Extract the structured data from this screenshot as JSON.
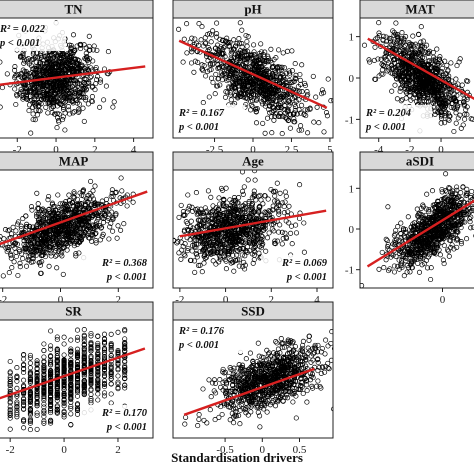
{
  "figure": {
    "xlabel": "Standardisation drivers"
  },
  "chart_data": [
    {
      "type": "scatter",
      "title": "TN",
      "xlim": [
        -3.2,
        5.0
      ],
      "ylim": [
        -1.45,
        1.45
      ],
      "xticks": [
        -2,
        0,
        2,
        4
      ],
      "yticks": [],
      "fit": {
        "x": [
          -3.2,
          4.6
        ],
        "y": [
          -0.18,
          0.28
        ]
      },
      "stats": {
        "r2": "R² = 0.022",
        "p": "p < 0.001",
        "position": "top-left"
      },
      "cloud": {
        "mean_x": 0,
        "sd_x": 1.0,
        "slope": 0.06,
        "sd_y": 0.42,
        "n": 900
      }
    },
    {
      "type": "scatter",
      "title": "pH",
      "xlim": [
        -5.2,
        5.2
      ],
      "ylim": [
        -1.45,
        1.45
      ],
      "xticks": [
        -2.5,
        0,
        2.5,
        5.0
      ],
      "yticks": [],
      "fit": {
        "x": [
          -4.8,
          4.8
        ],
        "y": [
          0.9,
          -0.72
        ]
      },
      "stats": {
        "r2": "R² = 0.167",
        "p": "p < 0.001",
        "position": "bottom-left"
      },
      "cloud": {
        "mean_x": 0,
        "sd_x": 1.8,
        "slope": -0.17,
        "sd_y": 0.38,
        "n": 900
      }
    },
    {
      "type": "scatter",
      "title": "MAT",
      "xlim": [
        -5.2,
        2.5
      ],
      "ylim": [
        -1.45,
        1.45
      ],
      "xticks": [
        -4,
        -2,
        0
      ],
      "yticks": [
        1,
        0,
        -1
      ],
      "fit": {
        "x": [
          -4.7,
          2.5
        ],
        "y": [
          0.95,
          -0.58
        ]
      },
      "stats": {
        "r2": "R² = 0.204",
        "p": "p < 0.001",
        "position": "bottom-left"
      },
      "cloud": {
        "mean_x": -1.2,
        "sd_x": 1.3,
        "slope": -0.21,
        "sd_y": 0.38,
        "n": 900
      }
    },
    {
      "type": "scatter",
      "title": "MAP",
      "xlim": [
        -2.3,
        3.2
      ],
      "ylim": [
        -1.45,
        1.45
      ],
      "xticks": [
        -2,
        0,
        2
      ],
      "yticks": [],
      "fit": {
        "x": [
          -2.3,
          3.0
        ],
        "y": [
          -0.42,
          0.92
        ]
      },
      "stats": {
        "r2": "R² = 0.368",
        "p": "p < 0.001",
        "position": "bottom-right"
      },
      "cloud": {
        "mean_x": 0,
        "sd_x": 0.9,
        "slope": 0.25,
        "sd_y": 0.34,
        "n": 900
      }
    },
    {
      "type": "scatter",
      "title": "Age",
      "xlim": [
        -2.3,
        4.7
      ],
      "ylim": [
        -1.45,
        1.45
      ],
      "xticks": [
        -2,
        0,
        2,
        4
      ],
      "yticks": [],
      "fit": {
        "x": [
          -2.0,
          4.4
        ],
        "y": [
          -0.18,
          0.45
        ]
      },
      "stats": {
        "r2": "R² = 0.069",
        "p": "p < 0.001",
        "position": "bottom-right"
      },
      "cloud": {
        "mean_x": 0.2,
        "sd_x": 1.1,
        "slope": 0.1,
        "sd_y": 0.42,
        "n": 900
      }
    },
    {
      "type": "scatter",
      "title": "aSDI",
      "xlim": [
        -3.3,
        1.5
      ],
      "ylim": [
        -1.45,
        1.45
      ],
      "xticks": [
        0
      ],
      "yticks": [
        1,
        0,
        -1
      ],
      "fit": {
        "x": [
          -3.0,
          1.5
        ],
        "y": [
          -0.92,
          0.78
        ]
      },
      "stats": {
        "r2": "",
        "p": "",
        "position": "none"
      },
      "cloud": {
        "mean_x": -0.4,
        "sd_x": 0.8,
        "slope": 0.38,
        "sd_y": 0.34,
        "n": 900
      }
    },
    {
      "type": "scatter",
      "title": "SR",
      "xlim": [
        -2.6,
        3.3
      ],
      "ylim": [
        -1.45,
        1.45
      ],
      "xticks": [
        -2,
        0,
        2
      ],
      "yticks": [],
      "fit": {
        "x": [
          -2.6,
          3.0
        ],
        "y": [
          -0.52,
          0.75
        ]
      },
      "stats": {
        "r2": "R² = 0.170",
        "p": "p < 0.001",
        "position": "bottom-right"
      },
      "cloud": {
        "mean_x": 0,
        "sd_x": 1.0,
        "slope": 0.22,
        "sd_y": 0.42,
        "n": 900,
        "discrete_x": [
          -2,
          -1.75,
          -1.5,
          -1.25,
          -1,
          -0.75,
          -0.5,
          -0.25,
          0,
          0.25,
          0.5,
          0.75,
          1,
          1.25,
          1.5,
          1.75,
          2,
          2.25
        ]
      }
    },
    {
      "type": "scatter",
      "title": "SSD",
      "xlim": [
        -1.2,
        0.95
      ],
      "ylim": [
        -1.45,
        1.45
      ],
      "xticks": [
        -0.5,
        0.0,
        0.5
      ],
      "yticks": [],
      "fit": {
        "x": [
          -1.05,
          0.7
        ],
        "y": [
          -0.88,
          0.25
        ]
      },
      "stats": {
        "r2": "R² = 0.176",
        "p": "p < 0.001",
        "position": "top-left"
      },
      "cloud": {
        "mean_x": 0.1,
        "sd_x": 0.35,
        "slope": 0.6,
        "sd_y": 0.36,
        "n": 900
      }
    }
  ]
}
